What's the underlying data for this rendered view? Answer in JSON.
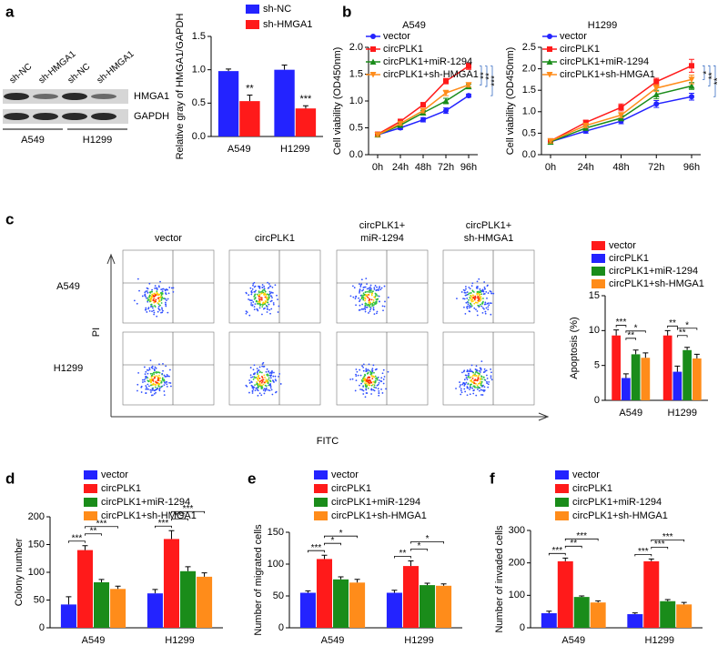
{
  "panel_labels": [
    "a",
    "b",
    "c",
    "d",
    "e",
    "f"
  ],
  "blot": {
    "lanes": [
      "sh-NC",
      "sh-HMGA1",
      "sh-NC",
      "sh-HMGA1"
    ],
    "bands": [
      "HMGA1",
      "GAPDH"
    ],
    "groups": [
      "A549",
      "H1299"
    ]
  },
  "flow": {
    "columns": [
      [
        "vector"
      ],
      [
        "circPLK1"
      ],
      [
        "circPLK1+",
        "miR-1294"
      ],
      [
        "circPLK1+",
        "sh-HMGA1"
      ]
    ],
    "rows": [
      "A549",
      "H1299"
    ],
    "x_label": "FITC",
    "y_label": "PI"
  },
  "chart_data": [
    {
      "type": "bar",
      "y_label": "Relative gray of HMGA1/GAPDH",
      "categories": [
        "A549",
        "H1299"
      ],
      "series": [
        {
          "name": "sh-NC",
          "color": "#2323ff",
          "values": [
            0.98,
            1.0
          ],
          "errors": [
            0.03,
            0.07
          ]
        },
        {
          "name": "sh-HMGA1",
          "color": "#ff1a1a",
          "values": [
            0.53,
            0.42
          ],
          "errors": [
            0.09,
            0.04
          ]
        }
      ],
      "ylim": [
        0,
        1.5
      ],
      "yticks": [
        {
          "value": 0,
          "label": "0.0"
        },
        0.5,
        {
          "value": 1,
          "label": "1.0"
        },
        1.5
      ],
      "legend": "top",
      "significance": [
        {
          "label": "**",
          "category": 0,
          "series": 1
        },
        {
          "label": "***",
          "category": 1,
          "series": 1
        }
      ]
    },
    {
      "type": "line",
      "title": "A549",
      "y_label": "Cell viability (OD450nm)",
      "categories": [
        "0h",
        "24h",
        "48h",
        "72h",
        "96h"
      ],
      "series": [
        {
          "name": "vector",
          "color": "#2323ff",
          "marker": "circle",
          "values": [
            0.37,
            0.5,
            0.65,
            0.82,
            1.1
          ],
          "errors": [
            0.03,
            0.03,
            0.04,
            0.05,
            0.03
          ]
        },
        {
          "name": "circPLK1",
          "color": "#ff1a1a",
          "marker": "square",
          "values": [
            0.38,
            0.62,
            0.93,
            1.37,
            1.65
          ],
          "errors": [
            0.03,
            0.03,
            0.04,
            0.05,
            0.06
          ]
        },
        {
          "name": "circPLK1+miR-1294",
          "color": "#1a8c1a",
          "marker": "triangle",
          "values": [
            0.37,
            0.55,
            0.78,
            1.0,
            1.27
          ],
          "errors": [
            0.03,
            0.03,
            0.04,
            0.05,
            0.04
          ]
        },
        {
          "name": "circPLK1+sh-HMGA1",
          "color": "#ff8c1a",
          "marker": "triangle-down",
          "values": [
            0.37,
            0.58,
            0.82,
            1.15,
            1.3
          ],
          "errors": [
            0.03,
            0.03,
            0.04,
            0.05,
            0.04
          ]
        }
      ],
      "ylim": [
        0,
        2
      ],
      "yticks": [
        {
          "value": 0,
          "label": "0.0"
        },
        0.5,
        {
          "value": 1,
          "label": "1.0"
        },
        1.5,
        {
          "value": 2,
          "label": "2.0"
        }
      ],
      "legend": "upper left",
      "significance": [
        {
          "label": "**",
          "category": 4,
          "pair": [
            1,
            3
          ]
        },
        {
          "label": "**",
          "category": 4,
          "pair": [
            1,
            2
          ]
        },
        {
          "label": "***",
          "category": 4,
          "pair": [
            1,
            0
          ]
        }
      ]
    },
    {
      "type": "line",
      "title": "H1299",
      "y_label": "Cell viability (OD450nm)",
      "categories": [
        "0h",
        "24h",
        "48h",
        "72h",
        "96h"
      ],
      "series": [
        {
          "name": "vector",
          "color": "#2323ff",
          "marker": "circle",
          "values": [
            0.3,
            0.55,
            0.78,
            1.18,
            1.35
          ],
          "errors": [
            0.05,
            0.05,
            0.06,
            0.08,
            0.08
          ]
        },
        {
          "name": "circPLK1",
          "color": "#ff1a1a",
          "marker": "square",
          "values": [
            0.32,
            0.75,
            1.1,
            1.7,
            2.07
          ],
          "errors": [
            0.05,
            0.05,
            0.08,
            0.08,
            0.15
          ]
        },
        {
          "name": "circPLK1+miR-1294",
          "color": "#1a8c1a",
          "marker": "triangle",
          "values": [
            0.3,
            0.62,
            0.85,
            1.4,
            1.6
          ],
          "errors": [
            0.06,
            0.05,
            0.06,
            0.1,
            0.08
          ]
        },
        {
          "name": "circPLK1+sh-HMGA1",
          "color": "#ff8c1a",
          "marker": "triangle-down",
          "values": [
            0.32,
            0.68,
            0.92,
            1.55,
            1.75
          ],
          "errors": [
            0.05,
            0.05,
            0.06,
            0.08,
            0.1
          ]
        }
      ],
      "ylim": [
        0,
        2.5
      ],
      "yticks": [
        {
          "value": 0,
          "label": "0.0"
        },
        0.5,
        {
          "value": 1,
          "label": "1.0"
        },
        1.5,
        {
          "value": 2,
          "label": "2.0"
        },
        2.5
      ],
      "legend": "upper left",
      "significance": [
        {
          "label": "*",
          "category": 4,
          "pair": [
            1,
            3
          ]
        },
        {
          "label": "**",
          "category": 4,
          "pair": [
            1,
            2
          ]
        },
        {
          "label": "**",
          "category": 4,
          "pair": [
            1,
            0
          ]
        }
      ]
    },
    {
      "type": "bar",
      "y_label": "Apoptosis (%)",
      "categories": [
        "A549",
        "H1299"
      ],
      "series": [
        {
          "name": "vector",
          "color": "#ff1a1a",
          "values": [
            9.3,
            9.3
          ],
          "errors": [
            0.8,
            0.7
          ]
        },
        {
          "name": "circPLK1",
          "color": "#2323ff",
          "values": [
            3.2,
            4.1
          ],
          "errors": [
            0.6,
            0.8
          ]
        },
        {
          "name": "circPLK1+miR-1294",
          "color": "#1a8c1a",
          "values": [
            6.6,
            7.2
          ],
          "errors": [
            0.6,
            0.4
          ]
        },
        {
          "name": "circPLK1+sh-HMGA1",
          "color": "#ff8c1a",
          "values": [
            6.1,
            6.0
          ],
          "errors": [
            0.7,
            0.6
          ]
        }
      ],
      "ylim": [
        0,
        15
      ],
      "yticks": [
        0,
        5,
        10,
        15
      ],
      "legend": "top",
      "significance": [
        {
          "label": "***",
          "category": 0,
          "pair": [
            0,
            1
          ]
        },
        {
          "label": "**",
          "category": 0,
          "pair": [
            1,
            2
          ]
        },
        {
          "label": "*",
          "category": 0,
          "pair": [
            1,
            3
          ]
        },
        {
          "label": "**",
          "category": 1,
          "pair": [
            0,
            1
          ]
        },
        {
          "label": "**",
          "category": 1,
          "pair": [
            1,
            2
          ]
        },
        {
          "label": "*",
          "category": 1,
          "pair": [
            1,
            3
          ]
        }
      ]
    },
    {
      "type": "bar",
      "y_label": "Colony number",
      "categories": [
        "A549",
        "H1299"
      ],
      "series": [
        {
          "name": "vector",
          "color": "#2323ff",
          "values": [
            42,
            62
          ],
          "errors": [
            14,
            7
          ]
        },
        {
          "name": "circPLK1",
          "color": "#ff1a1a",
          "values": [
            140,
            160
          ],
          "errors": [
            8,
            15
          ]
        },
        {
          "name": "circPLK1+miR-1294",
          "color": "#1a8c1a",
          "values": [
            82,
            102
          ],
          "errors": [
            5,
            8
          ]
        },
        {
          "name": "circPLK1+sh-HMGA1",
          "color": "#ff8c1a",
          "values": [
            70,
            92
          ],
          "errors": [
            5,
            7
          ]
        }
      ],
      "ylim": [
        0,
        200
      ],
      "yticks": [
        0,
        50,
        100,
        150,
        200
      ],
      "legend": "top",
      "significance": [
        {
          "label": "***",
          "category": 0,
          "pair": [
            0,
            1
          ]
        },
        {
          "label": "**",
          "category": 0,
          "pair": [
            1,
            2
          ]
        },
        {
          "label": "***",
          "category": 0,
          "pair": [
            1,
            3
          ]
        },
        {
          "label": "***",
          "category": 1,
          "pair": [
            0,
            1
          ]
        },
        {
          "label": "***",
          "category": 1,
          "pair": [
            1,
            2
          ]
        },
        {
          "label": "***",
          "category": 1,
          "pair": [
            1,
            3
          ]
        }
      ]
    },
    {
      "type": "bar",
      "y_label": "Number of migrated cells",
      "categories": [
        "A549",
        "H1299"
      ],
      "series": [
        {
          "name": "vector",
          "color": "#2323ff",
          "values": [
            55,
            55
          ],
          "errors": [
            3,
            4
          ]
        },
        {
          "name": "circPLK1",
          "color": "#ff1a1a",
          "values": [
            108,
            97
          ],
          "errors": [
            6,
            8
          ]
        },
        {
          "name": "circPLK1+miR-1294",
          "color": "#1a8c1a",
          "values": [
            76,
            67
          ],
          "errors": [
            4,
            3
          ]
        },
        {
          "name": "circPLK1+sh-HMGA1",
          "color": "#ff8c1a",
          "values": [
            71,
            66
          ],
          "errors": [
            5,
            3
          ]
        }
      ],
      "ylim": [
        0,
        150
      ],
      "yticks": [
        0,
        50,
        100,
        150
      ],
      "legend": "top",
      "significance": [
        {
          "label": "***",
          "category": 0,
          "pair": [
            0,
            1
          ]
        },
        {
          "label": "*",
          "category": 0,
          "pair": [
            1,
            2
          ]
        },
        {
          "label": "*",
          "category": 0,
          "pair": [
            1,
            3
          ]
        },
        {
          "label": "**",
          "category": 1,
          "pair": [
            0,
            1
          ]
        },
        {
          "label": "*",
          "category": 1,
          "pair": [
            1,
            2
          ]
        },
        {
          "label": "*",
          "category": 1,
          "pair": [
            1,
            3
          ]
        }
      ]
    },
    {
      "type": "bar",
      "y_label": "Number of invaded cells",
      "categories": [
        "A549",
        "H1299"
      ],
      "series": [
        {
          "name": "vector",
          "color": "#2323ff",
          "values": [
            45,
            42
          ],
          "errors": [
            6,
            4
          ]
        },
        {
          "name": "circPLK1",
          "color": "#ff1a1a",
          "values": [
            205,
            205
          ],
          "errors": [
            10,
            7
          ]
        },
        {
          "name": "circPLK1+miR-1294",
          "color": "#1a8c1a",
          "values": [
            95,
            82
          ],
          "errors": [
            3,
            5
          ]
        },
        {
          "name": "circPLK1+sh-HMGA1",
          "color": "#ff8c1a",
          "values": [
            78,
            72
          ],
          "errors": [
            5,
            6
          ]
        }
      ],
      "ylim": [
        0,
        300
      ],
      "yticks": [
        0,
        100,
        200,
        300
      ],
      "legend": "top",
      "significance": [
        {
          "label": "***",
          "category": 0,
          "pair": [
            0,
            1
          ]
        },
        {
          "label": "**",
          "category": 0,
          "pair": [
            1,
            2
          ]
        },
        {
          "label": "***",
          "category": 0,
          "pair": [
            1,
            3
          ]
        },
        {
          "label": "***",
          "category": 1,
          "pair": [
            0,
            1
          ]
        },
        {
          "label": "***",
          "category": 1,
          "pair": [
            1,
            2
          ]
        },
        {
          "label": "***",
          "category": 1,
          "pair": [
            1,
            3
          ]
        }
      ]
    }
  ]
}
